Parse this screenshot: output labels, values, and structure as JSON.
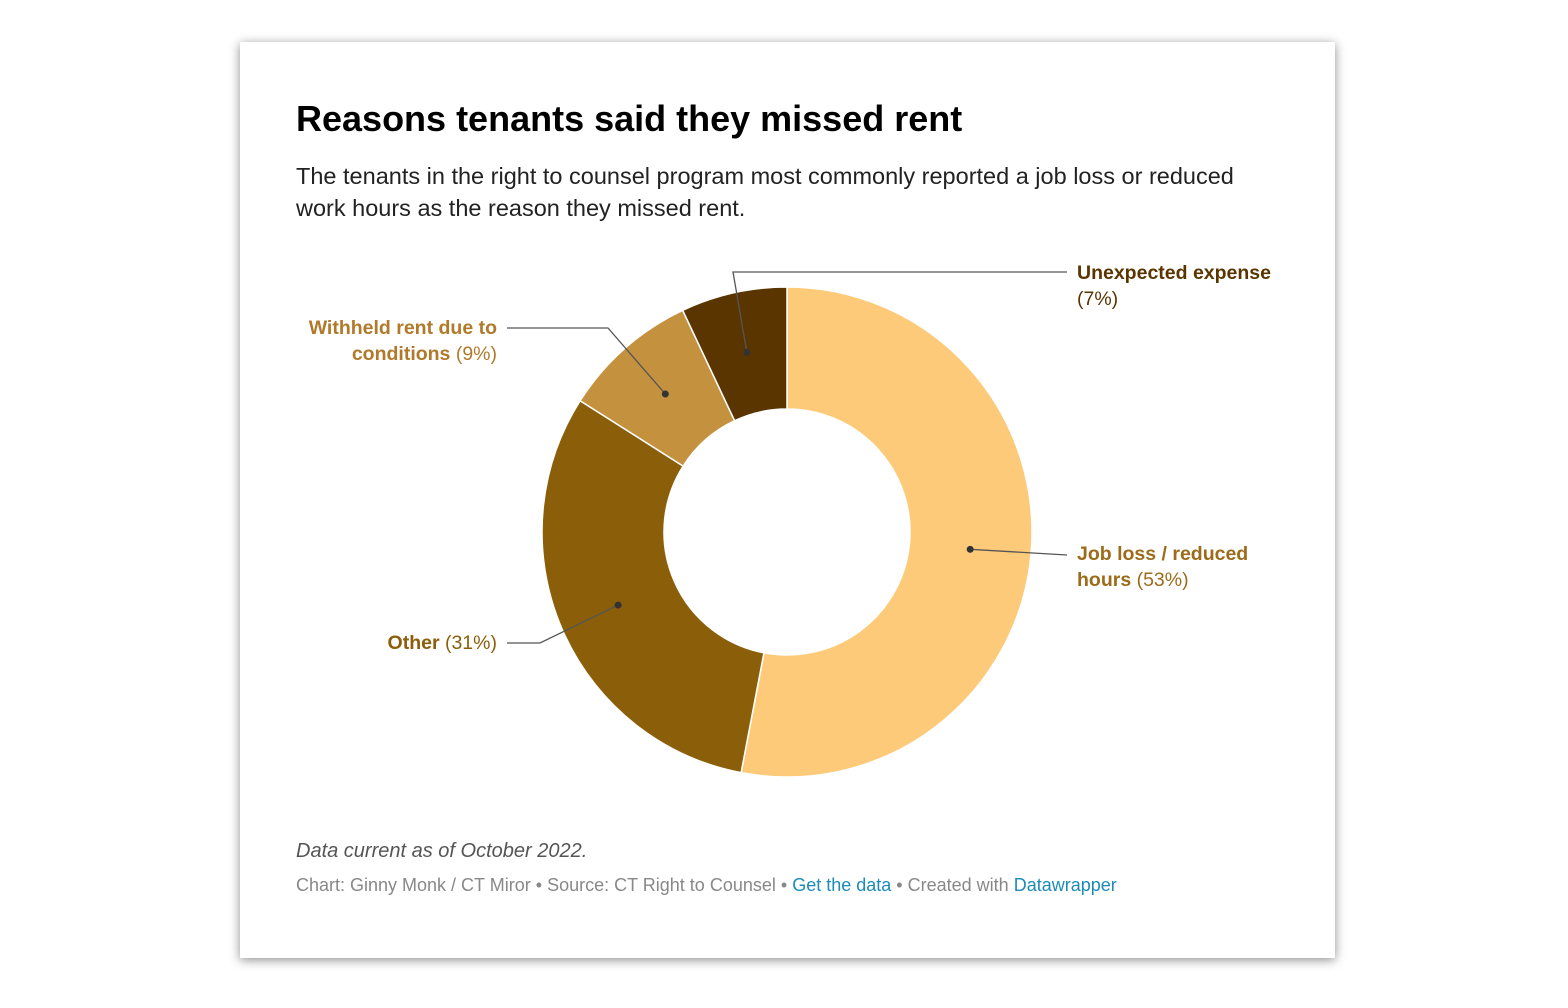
{
  "chart_data": {
    "type": "donut",
    "title": "Reasons tenants said they missed rent",
    "subtitle": "The tenants in the right to counsel program most commonly reported a job loss or reduced work hours as the reason they missed rent.",
    "categories": [
      "Job loss / reduced hours",
      "Other",
      "Withheld rent due to conditions",
      "Unexpected expense"
    ],
    "values": [
      53,
      31,
      9,
      7
    ],
    "value_labels": [
      "(53%)",
      "(31%)",
      "(9%)",
      "(7%)"
    ],
    "colors": [
      "#fdca7a",
      "#8b5e0a",
      "#c4913f",
      "#5a3500"
    ],
    "label_colors": [
      "#9c6c1a",
      "#8b5e0a",
      "#b07a2a",
      "#5a3500"
    ],
    "footer": {
      "note": "Data current as of October 2022.",
      "byline": "Chart: Ginny Monk / CT Miror",
      "source": "Source: CT Right to Counsel",
      "data_link": "Get the data",
      "created_with": "Created with",
      "tool_link": "Datawrapper",
      "separator": "•"
    }
  }
}
